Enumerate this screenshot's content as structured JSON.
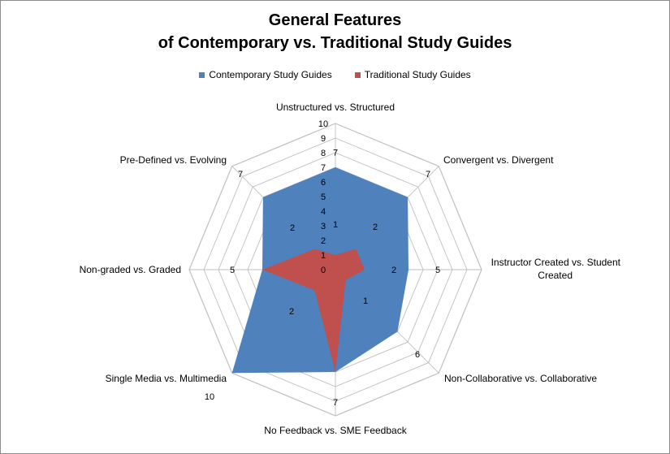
{
  "chart_data": {
    "type": "radar",
    "title_line1": "General Features",
    "title_line2": "of Contemporary vs. Traditional Study Guides",
    "axes": [
      "Unstructured vs. Structured",
      "Convergent vs. Divergent",
      "Instructor Created vs. Student Created",
      "Non-Collaborative vs. Collaborative",
      "No Feedback vs. SME Feedback",
      "Single Media vs. Multimedia",
      "Non-graded vs. Graded",
      "Pre-Defined vs. Evolving"
    ],
    "rlim": [
      0,
      10
    ],
    "ticks": [
      0,
      1,
      2,
      3,
      4,
      5,
      6,
      7,
      8,
      9,
      10
    ],
    "series": [
      {
        "name": "Contemporary Study Guides",
        "color": "#4f81bd",
        "values": [
          7,
          7,
          5,
          6,
          7,
          10,
          5,
          7
        ]
      },
      {
        "name": "Traditional Study Guides",
        "color": "#c0504d",
        "values": [
          1,
          2,
          2,
          1,
          7,
          2,
          5,
          2
        ]
      }
    ],
    "grid": true,
    "legend_position": "top"
  }
}
